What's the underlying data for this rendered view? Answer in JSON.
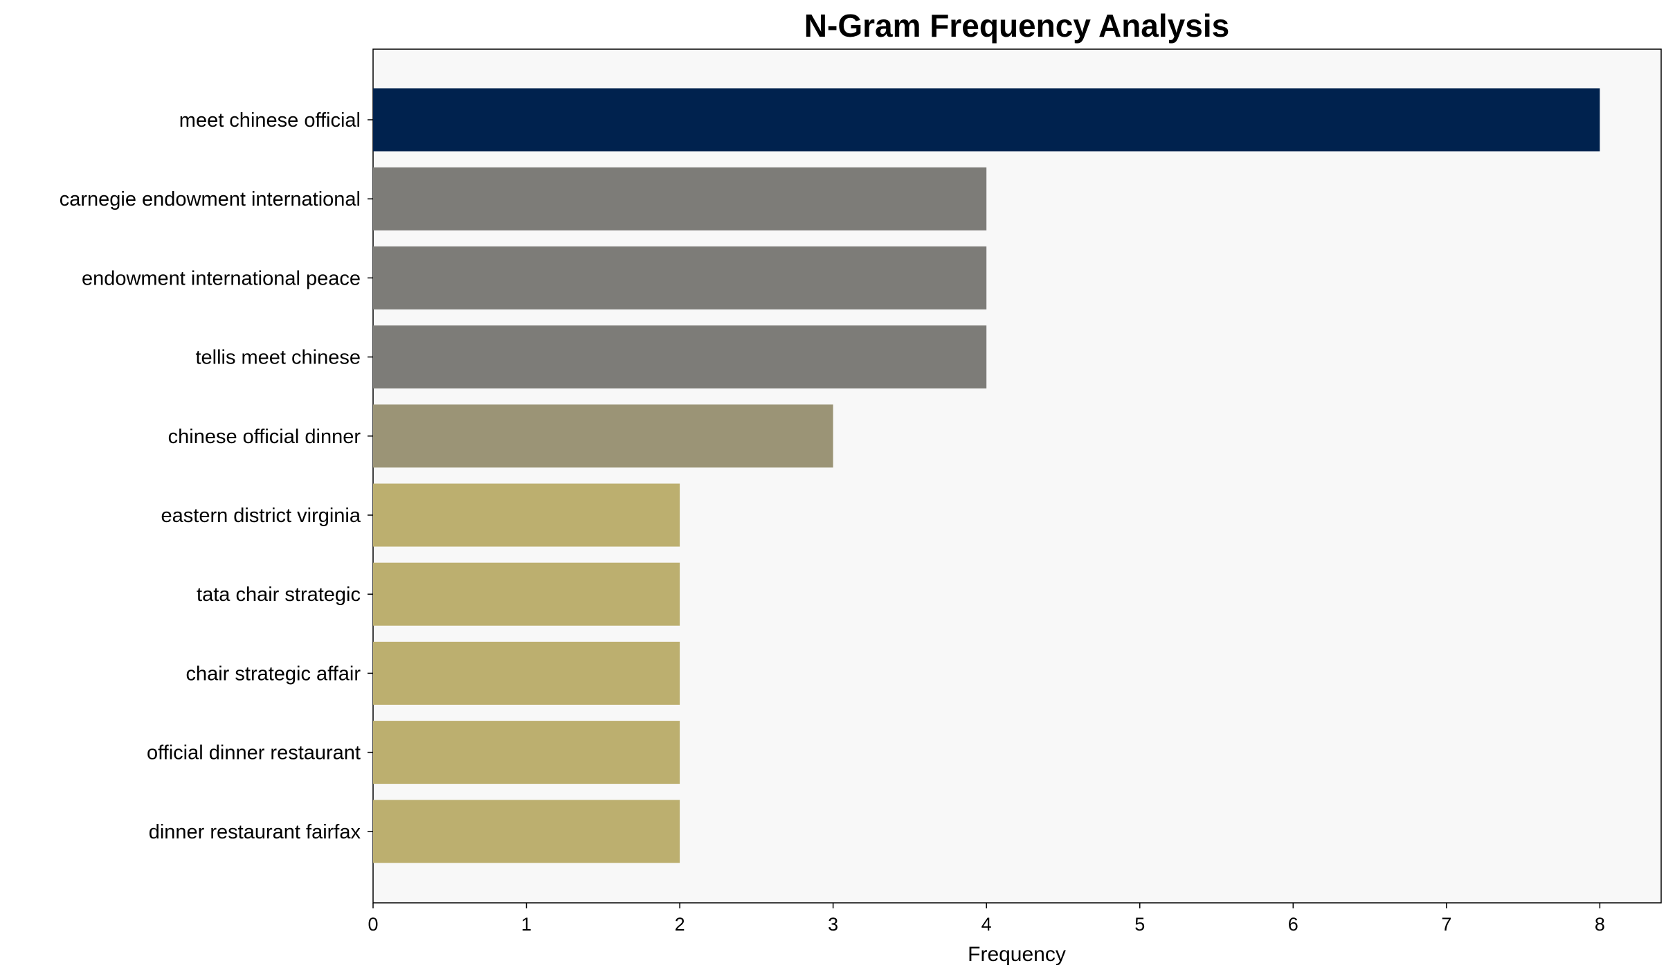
{
  "chart_data": {
    "type": "bar",
    "orientation": "horizontal",
    "title": "N-Gram Frequency Analysis",
    "xlabel": "Frequency",
    "ylabel": "",
    "categories": [
      "meet chinese official",
      "carnegie endowment international",
      "endowment international peace",
      "tellis meet chinese",
      "chinese official dinner",
      "eastern district virginia",
      "tata chair strategic",
      "chair strategic affair",
      "official dinner restaurant",
      "dinner restaurant fairfax"
    ],
    "values": [
      8,
      4,
      4,
      4,
      3,
      2,
      2,
      2,
      2,
      2
    ],
    "colors": [
      "#00224e",
      "#7d7c78",
      "#7d7c78",
      "#7d7c78",
      "#9b9476",
      "#bcaf6f",
      "#bcaf6f",
      "#bcaf6f",
      "#bcaf6f",
      "#bcaf6f"
    ],
    "xlim": [
      0,
      8.4
    ],
    "xticks": [
      "0",
      "1",
      "2",
      "3",
      "4",
      "5",
      "6",
      "7",
      "8"
    ],
    "grid": false,
    "plot_background": "#f8f8f8"
  }
}
